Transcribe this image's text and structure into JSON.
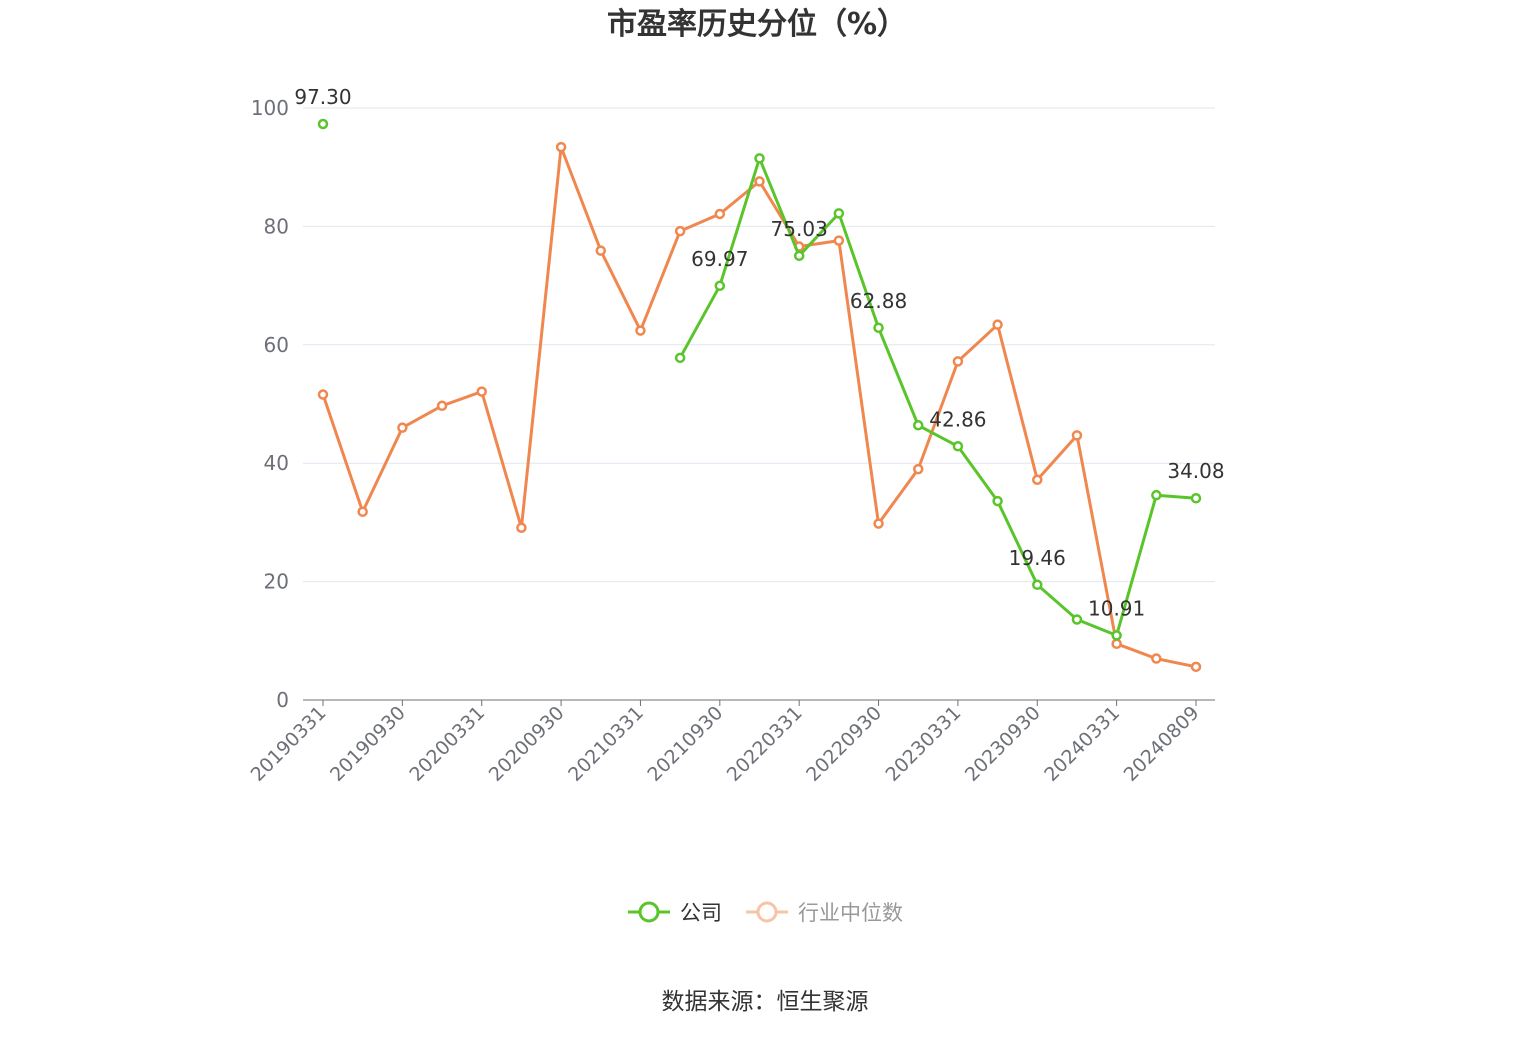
{
  "chart_data": {
    "type": "line",
    "title": "市盈率历史分位（%）",
    "source": "数据来源：恒生聚源",
    "xlabel": "",
    "ylabel": "",
    "ylim": [
      0,
      100
    ],
    "yticks": [
      "0",
      "20",
      "40",
      "60",
      "80",
      "100"
    ],
    "grid": true,
    "legend_position": "bottom",
    "x": [
      "20190331",
      "20190630",
      "20190930",
      "20191231",
      "20200331",
      "20200630",
      "20200930",
      "20201231",
      "20210331",
      "20210630",
      "20210930",
      "20211231",
      "20220331",
      "20220630",
      "20220930",
      "20221231",
      "20230331",
      "20230630",
      "20230930",
      "20231231",
      "20240331",
      "20240630",
      "20240809"
    ],
    "x_tick_labels": [
      "20190331",
      "20190930",
      "20200331",
      "20200930",
      "20210331",
      "20210930",
      "20220331",
      "20220930",
      "20230331",
      "20230930",
      "20240331",
      "20240809"
    ],
    "series": [
      {
        "name": "公司",
        "color": "#5ac52a",
        "values": [
          97.3,
          null,
          null,
          null,
          null,
          null,
          null,
          null,
          null,
          57.8,
          69.97,
          91.5,
          75.03,
          82.2,
          62.88,
          46.4,
          42.86,
          33.6,
          19.46,
          13.6,
          10.91,
          34.6,
          34.08
        ],
        "labels": [
          "97.30",
          "",
          "",
          "",
          "",
          "",
          "",
          "",
          "",
          "",
          "69.97",
          "",
          "75.03",
          "",
          "62.88",
          "",
          "42.86",
          "",
          "19.46",
          "",
          "10.91",
          "",
          "34.08"
        ]
      },
      {
        "name": "行业中位数",
        "color": "#f0874f",
        "values": [
          51.6,
          31.8,
          46.0,
          49.7,
          52.1,
          29.1,
          93.4,
          75.9,
          62.4,
          79.2,
          82.1,
          87.6,
          76.6,
          77.6,
          29.8,
          39.0,
          57.2,
          63.4,
          37.2,
          44.7,
          9.5,
          7.0,
          5.6
        ]
      }
    ]
  }
}
